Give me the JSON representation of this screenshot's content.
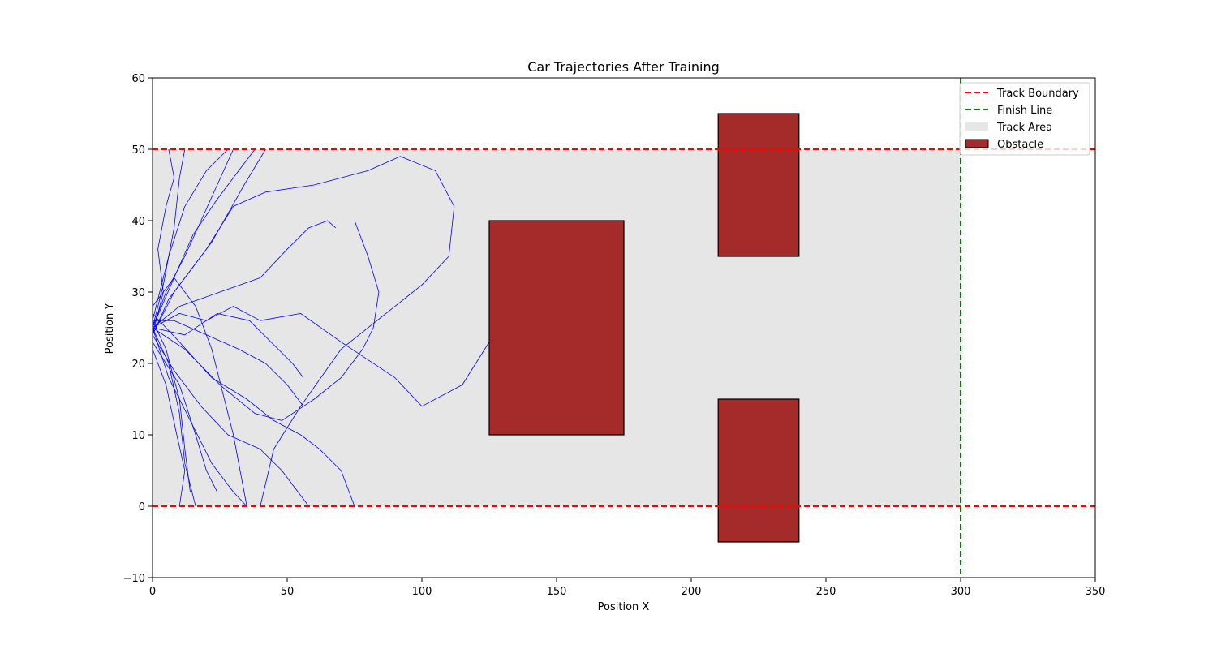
{
  "chart_data": {
    "type": "line",
    "title": "Car Trajectories After Training",
    "xlabel": "Position X",
    "ylabel": "Position Y",
    "xlim": [
      0,
      350
    ],
    "ylim": [
      -10,
      60
    ],
    "xticks": [
      0,
      50,
      100,
      150,
      200,
      250,
      300,
      350
    ],
    "yticks": [
      -10,
      0,
      10,
      20,
      30,
      40,
      50,
      60
    ],
    "grid": false,
    "legend_position": "top-right",
    "legend": [
      {
        "label": "Track Boundary",
        "style": "dashed-line",
        "color": "#ff0000"
      },
      {
        "label": "Finish Line",
        "style": "dashed-line",
        "color": "#008000"
      },
      {
        "label": "Track Area",
        "style": "patch",
        "color": "#e6e6e6"
      },
      {
        "label": "Obstacle",
        "style": "patch",
        "color": "#a52a2a"
      }
    ],
    "track_area": {
      "x": [
        0,
        300
      ],
      "y": [
        0,
        50
      ],
      "color": "#e6e6e6"
    },
    "track_boundaries": [
      0,
      50
    ],
    "finish_line_x": 300,
    "obstacles": [
      {
        "x": [
          125,
          175
        ],
        "y": [
          10,
          40
        ],
        "color": "#a52a2a"
      },
      {
        "x": [
          210,
          240
        ],
        "y": [
          35,
          55
        ],
        "color": "#a52a2a"
      },
      {
        "x": [
          210,
          240
        ],
        "y": [
          -5,
          15
        ],
        "color": "#a52a2a"
      }
    ],
    "trajectory_color": "#0000ff",
    "trajectories": [
      [
        [
          0,
          25
        ],
        [
          5,
          30
        ],
        [
          12,
          35
        ],
        [
          18,
          40
        ],
        [
          24,
          45
        ],
        [
          30,
          50
        ]
      ],
      [
        [
          0,
          25
        ],
        [
          10,
          27
        ],
        [
          20,
          26
        ],
        [
          30,
          28
        ],
        [
          40,
          26
        ],
        [
          55,
          27
        ],
        [
          70,
          23
        ],
        [
          90,
          18
        ],
        [
          100,
          14
        ],
        [
          115,
          17
        ],
        [
          125,
          23
        ]
      ],
      [
        [
          0,
          24
        ],
        [
          8,
          30
        ],
        [
          20,
          36
        ],
        [
          30,
          42
        ],
        [
          42,
          44
        ],
        [
          60,
          45
        ],
        [
          80,
          47
        ],
        [
          92,
          49
        ],
        [
          105,
          47
        ],
        [
          112,
          42
        ],
        [
          110,
          35
        ],
        [
          100,
          31
        ],
        [
          90,
          28
        ],
        [
          70,
          22
        ],
        [
          55,
          14
        ],
        [
          45,
          8
        ],
        [
          40,
          0
        ]
      ],
      [
        [
          0,
          25
        ],
        [
          10,
          28
        ],
        [
          25,
          30
        ],
        [
          40,
          32
        ],
        [
          50,
          36
        ],
        [
          58,
          39
        ],
        [
          65,
          40
        ],
        [
          68,
          39
        ]
      ],
      [
        [
          0,
          26
        ],
        [
          6,
          35
        ],
        [
          12,
          42
        ],
        [
          20,
          47
        ],
        [
          28,
          50
        ]
      ],
      [
        [
          0,
          25
        ],
        [
          6,
          18
        ],
        [
          14,
          12
        ],
        [
          22,
          6
        ],
        [
          30,
          2
        ],
        [
          35,
          0
        ]
      ],
      [
        [
          0,
          24
        ],
        [
          8,
          19
        ],
        [
          18,
          14
        ],
        [
          28,
          10
        ],
        [
          40,
          8
        ],
        [
          48,
          5
        ],
        [
          58,
          0
        ]
      ],
      [
        [
          0,
          25
        ],
        [
          12,
          22
        ],
        [
          25,
          17
        ],
        [
          38,
          13
        ],
        [
          48,
          12
        ],
        [
          60,
          15
        ],
        [
          70,
          18
        ],
        [
          78,
          22
        ],
        [
          82,
          25
        ],
        [
          84,
          30
        ],
        [
          80,
          35
        ],
        [
          75,
          40
        ]
      ],
      [
        [
          0,
          23
        ],
        [
          10,
          17
        ],
        [
          16,
          10
        ],
        [
          20,
          5
        ],
        [
          24,
          2
        ]
      ],
      [
        [
          0,
          26
        ],
        [
          5,
          22
        ],
        [
          10,
          15
        ],
        [
          12,
          8
        ],
        [
          14,
          2
        ]
      ],
      [
        [
          0,
          25
        ],
        [
          8,
          32
        ],
        [
          15,
          38
        ],
        [
          24,
          43
        ],
        [
          32,
          47
        ],
        [
          38,
          50
        ]
      ],
      [
        [
          0,
          27
        ],
        [
          10,
          23
        ],
        [
          22,
          18
        ],
        [
          35,
          15
        ],
        [
          45,
          12
        ],
        [
          55,
          10
        ],
        [
          62,
          8
        ],
        [
          70,
          5
        ],
        [
          75,
          0
        ]
      ],
      [
        [
          0,
          24
        ],
        [
          6,
          29
        ],
        [
          14,
          33
        ],
        [
          22,
          37
        ],
        [
          28,
          41
        ],
        [
          34,
          45
        ],
        [
          42,
          50
        ]
      ],
      [
        [
          0,
          25
        ],
        [
          4,
          31
        ],
        [
          8,
          39
        ],
        [
          10,
          46
        ],
        [
          12,
          50
        ]
      ],
      [
        [
          0,
          25
        ],
        [
          6,
          20
        ],
        [
          10,
          13
        ],
        [
          12,
          6
        ],
        [
          16,
          0
        ]
      ],
      [
        [
          0,
          26
        ],
        [
          8,
          26
        ],
        [
          20,
          24
        ],
        [
          32,
          22
        ],
        [
          42,
          20
        ],
        [
          50,
          17
        ],
        [
          56,
          14
        ]
      ],
      [
        [
          0,
          22
        ],
        [
          5,
          17
        ],
        [
          9,
          10
        ],
        [
          12,
          5
        ],
        [
          10,
          0
        ]
      ],
      [
        [
          0,
          28
        ],
        [
          8,
          32
        ],
        [
          16,
          28
        ],
        [
          22,
          22
        ],
        [
          26,
          16
        ],
        [
          30,
          10
        ],
        [
          33,
          4
        ],
        [
          35,
          0
        ]
      ],
      [
        [
          0,
          24
        ],
        [
          4,
          30
        ],
        [
          2,
          36
        ],
        [
          5,
          42
        ],
        [
          8,
          46
        ],
        [
          6,
          50
        ]
      ],
      [
        [
          0,
          25
        ],
        [
          12,
          24
        ],
        [
          24,
          27
        ],
        [
          36,
          26
        ],
        [
          44,
          23
        ],
        [
          52,
          20
        ],
        [
          56,
          18
        ]
      ]
    ]
  }
}
